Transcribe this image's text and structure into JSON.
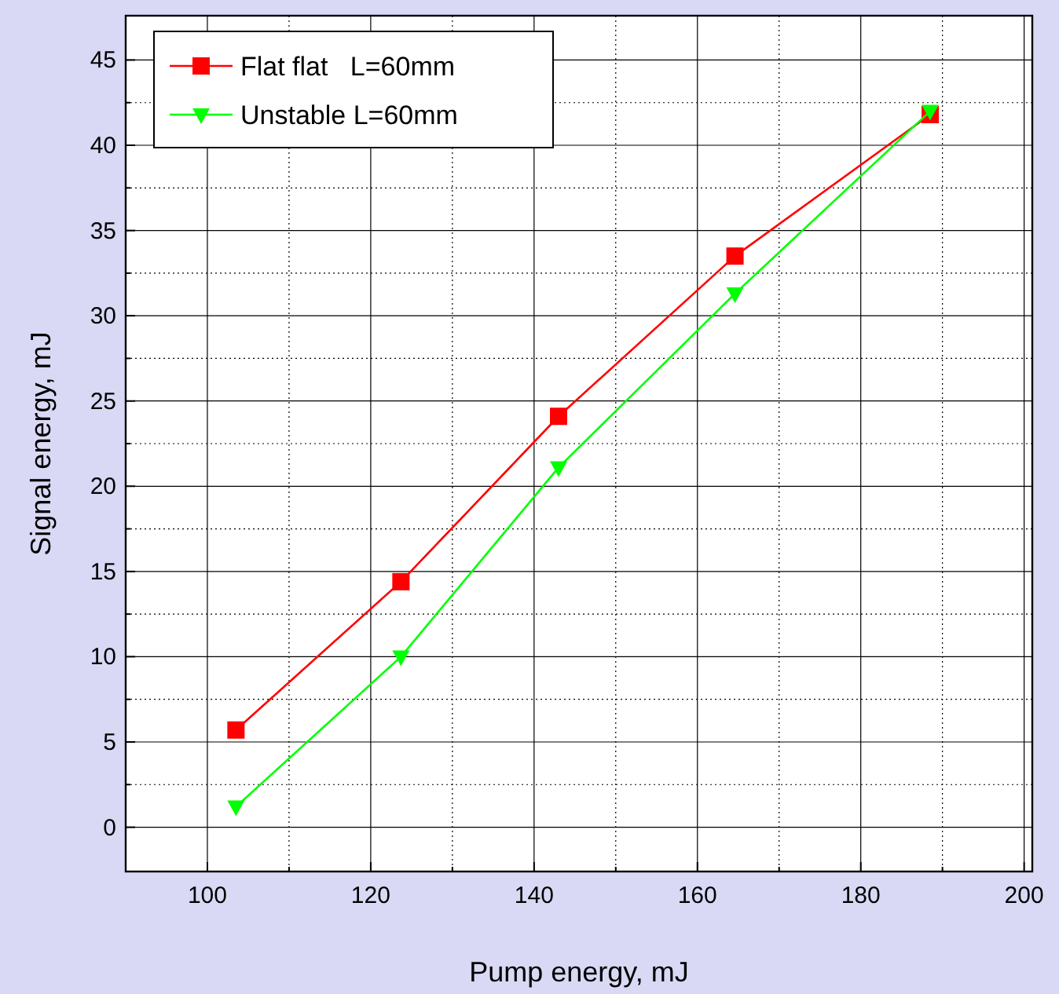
{
  "chart_data": {
    "type": "line",
    "xlabel": "Pump energy, mJ",
    "ylabel": "Signal energy, mJ",
    "xlim": [
      90,
      201
    ],
    "ylim": [
      -2.6,
      47.6
    ],
    "xticks": [
      100,
      {
        "value": 110,
        "label": null
      },
      120,
      {
        "value": 130,
        "label": null
      },
      140,
      {
        "value": 150,
        "label": null
      },
      160,
      {
        "value": 170,
        "label": null
      },
      180,
      {
        "value": 190,
        "label": null
      },
      200
    ],
    "yticks": [
      0,
      {
        "value": 2.5,
        "label": null
      },
      5,
      {
        "value": 7.5,
        "label": null
      },
      10,
      {
        "value": 12.5,
        "label": null
      },
      15,
      {
        "value": 17.5,
        "label": null
      },
      20,
      {
        "value": 22.5,
        "label": null
      },
      25,
      {
        "value": 27.5,
        "label": null
      },
      30,
      {
        "value": 32.5,
        "label": null
      },
      35,
      {
        "value": 37.5,
        "label": null
      },
      40,
      {
        "value": 42.5,
        "label": null
      },
      45
    ],
    "grid": true,
    "legend": "top left",
    "line_style": "solid",
    "series": [
      {
        "name": "Flat flat   L=60mm",
        "color": "#ff0000",
        "marker": "square",
        "x": [
          103.5,
          123.7,
          143,
          164.6,
          188.5
        ],
        "values": [
          5.7,
          14.4,
          24.1,
          33.5,
          41.8
        ]
      },
      {
        "name": "Unstable L=60mm",
        "color": "#00ff00",
        "marker": "triangle",
        "x": [
          103.5,
          123.7,
          143,
          164.6,
          188.5
        ],
        "values": [
          1.2,
          10,
          21.1,
          31.3,
          42
        ]
      }
    ]
  }
}
